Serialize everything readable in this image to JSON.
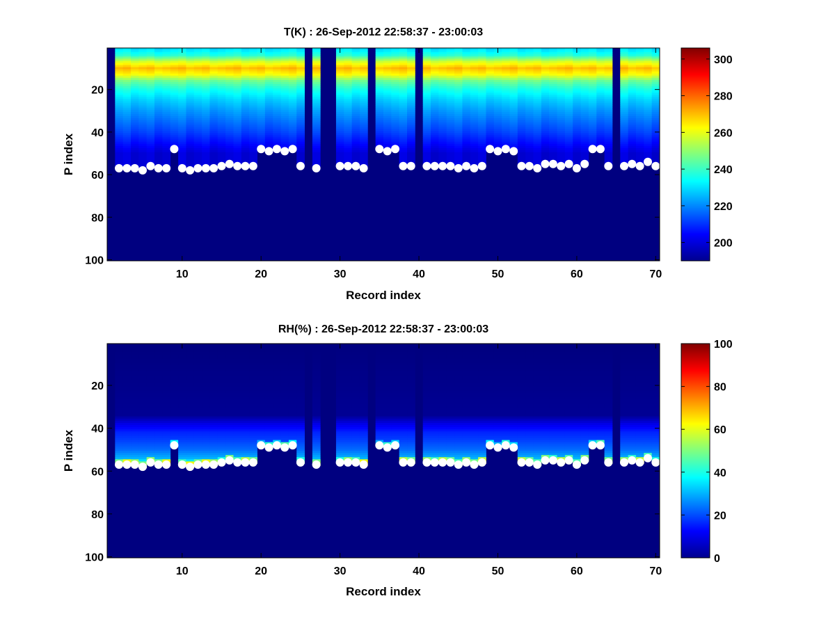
{
  "chart_data": [
    {
      "type": "heatmap",
      "id": "temperature",
      "title": "T(K) : 26-Sep-2012 22:58:37 - 23:00:03",
      "xlabel": "Record index",
      "ylabel": "P index",
      "xlim": [
        0.5,
        70.5
      ],
      "ylim": [
        0.5,
        100.5
      ],
      "y_reversed": true,
      "x_ticks": [
        10,
        20,
        30,
        40,
        50,
        60,
        70
      ],
      "y_ticks": [
        20,
        40,
        60,
        80,
        100
      ],
      "colorbar": {
        "colormap": "jet",
        "min": 190,
        "max": 306,
        "ticks": [
          200,
          220,
          240,
          260,
          280,
          300
        ]
      },
      "missing_records": [
        26,
        28,
        29,
        34,
        40,
        65
      ],
      "surface_level_marker": "white-circle"
    },
    {
      "type": "heatmap",
      "id": "relative-humidity",
      "title": "RH(%) : 26-Sep-2012 22:58:37 - 23:00:03",
      "xlabel": "Record index",
      "ylabel": "P index",
      "xlim": [
        0.5,
        70.5
      ],
      "ylim": [
        0.5,
        100.5
      ],
      "y_reversed": true,
      "x_ticks": [
        10,
        20,
        30,
        40,
        50,
        60,
        70
      ],
      "y_ticks": [
        20,
        40,
        60,
        80,
        100
      ],
      "colorbar": {
        "colormap": "jet",
        "min": 0,
        "max": 100,
        "ticks": [
          0,
          20,
          40,
          60,
          80,
          100
        ]
      },
      "missing_records": [
        26,
        28,
        29,
        34,
        40,
        65
      ],
      "surface_level_marker": "white-circle"
    }
  ],
  "surface_levels": {
    "records": [
      1,
      2,
      3,
      4,
      5,
      6,
      7,
      8,
      9,
      10,
      11,
      12,
      13,
      14,
      15,
      16,
      17,
      18,
      19,
      20,
      21,
      22,
      23,
      24,
      25,
      26,
      27,
      28,
      29,
      30,
      31,
      32,
      33,
      34,
      35,
      36,
      37,
      38,
      39,
      40,
      41,
      42,
      43,
      44,
      45,
      46,
      47,
      48,
      49,
      50,
      51,
      52,
      53,
      54,
      55,
      56,
      57,
      58,
      59,
      60,
      61,
      62,
      63,
      64,
      65,
      66,
      67,
      68,
      69,
      70
    ],
    "p_index": [
      null,
      57,
      57,
      57,
      58,
      56,
      57,
      57,
      48,
      57,
      58,
      57,
      57,
      57,
      56,
      55,
      56,
      56,
      56,
      48,
      49,
      48,
      49,
      48,
      56,
      null,
      57,
      null,
      null,
      56,
      56,
      56,
      57,
      null,
      48,
      49,
      48,
      56,
      56,
      null,
      56,
      56,
      56,
      56,
      57,
      56,
      57,
      56,
      48,
      49,
      48,
      49,
      56,
      56,
      57,
      55,
      55,
      56,
      55,
      57,
      55,
      48,
      48,
      56,
      null,
      56,
      55,
      56,
      54,
      56
    ]
  },
  "temperature_profile": {
    "levels": [
      1,
      4,
      7,
      10,
      13,
      16,
      20,
      25,
      30,
      35,
      40,
      45,
      50
    ],
    "kelvin": [
      230,
      238,
      258,
      270,
      262,
      246,
      236,
      228,
      222,
      217,
      212,
      206,
      200
    ]
  },
  "humidity_profile": {
    "levels": [
      1,
      34,
      38,
      42,
      46,
      50,
      54,
      57
    ],
    "percent": [
      0,
      2,
      10,
      16,
      19,
      23,
      30,
      44
    ]
  }
}
